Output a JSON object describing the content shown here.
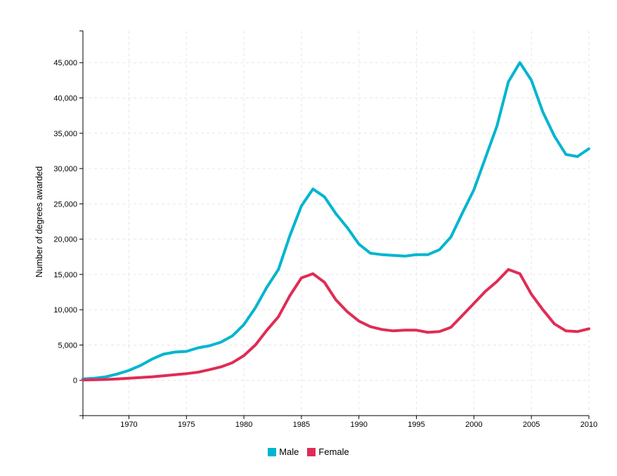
{
  "chart_data": {
    "type": "line",
    "title": "",
    "xlabel": "",
    "ylabel": "Number of degrees awarded",
    "xlim": [
      1966,
      2010
    ],
    "ylim": [
      -5000,
      49500
    ],
    "x_ticks": [
      "1970",
      "1975",
      "1980",
      "1985",
      "1990",
      "1995",
      "2000",
      "2005",
      "2010"
    ],
    "y_ticks": [
      "0",
      "5,000",
      "10,000",
      "15,000",
      "20,000",
      "25,000",
      "30,000",
      "35,000",
      "40,000",
      "45,000"
    ],
    "grid": true,
    "legend_position": "bottom-center",
    "x": [
      1966,
      1967,
      1968,
      1969,
      1970,
      1971,
      1972,
      1973,
      1974,
      1975,
      1976,
      1977,
      1978,
      1979,
      1980,
      1981,
      1982,
      1983,
      1984,
      1985,
      1986,
      1987,
      1988,
      1989,
      1990,
      1991,
      1992,
      1993,
      1994,
      1995,
      1996,
      1997,
      1998,
      1999,
      2000,
      2001,
      2002,
      2003,
      2004,
      2005,
      2006,
      2007,
      2008,
      2009,
      2010
    ],
    "series": [
      {
        "name": "Male",
        "color": "#00b5cf",
        "values": [
          200,
          300,
          500,
          900,
          1400,
          2100,
          3000,
          3700,
          4000,
          4100,
          4600,
          4900,
          5400,
          6300,
          7900,
          10300,
          13200,
          15700,
          20500,
          24700,
          27100,
          26000,
          23600,
          21600,
          19300,
          18000,
          17800,
          17700,
          17600,
          17800,
          17800,
          18500,
          20300,
          23700,
          27000,
          31500,
          36000,
          42300,
          45000,
          42500,
          38000,
          34600,
          32000,
          31700,
          32800
        ]
      },
      {
        "name": "Female",
        "color": "#e02c55",
        "values": [
          50,
          80,
          120,
          200,
          300,
          400,
          500,
          650,
          800,
          950,
          1150,
          1500,
          1900,
          2500,
          3500,
          5000,
          7100,
          9000,
          12000,
          14500,
          15100,
          13900,
          11400,
          9700,
          8400,
          7600,
          7200,
          7000,
          7100,
          7100,
          6800,
          6900,
          7500,
          9200,
          10900,
          12600,
          14000,
          15700,
          15100,
          12200,
          10000,
          8000,
          7000,
          6900,
          7300
        ]
      }
    ]
  }
}
